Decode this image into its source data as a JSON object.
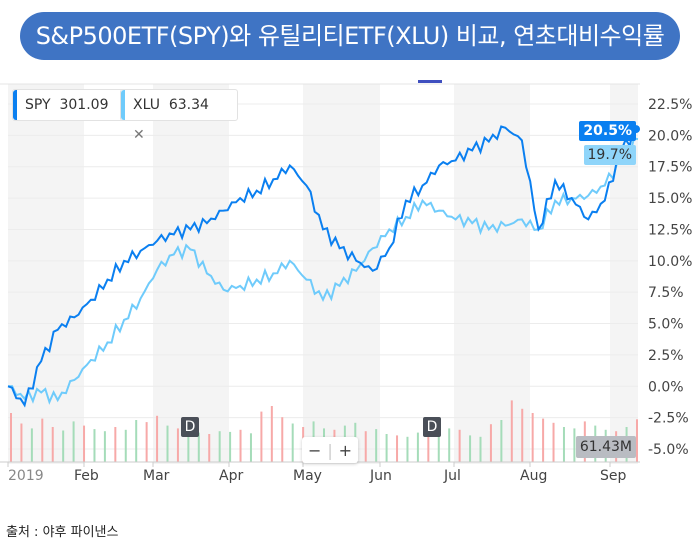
{
  "title": "S&P500ETF(SPY)와 유틸리티ETF(XLU) 비교, 연초대비수익률",
  "legend": {
    "spy": {
      "symbol": "SPY",
      "price": "301.09",
      "color": "#0a7ff0"
    },
    "xlu": {
      "symbol": "XLU",
      "price": "63.34",
      "color": "#6fcbfb",
      "close": "✕"
    }
  },
  "badges": {
    "spy": "20.5%",
    "xlu": "19.7%",
    "volume": "61.43M"
  },
  "dividend_markers": [
    "D",
    "D"
  ],
  "zoom": {
    "minus": "−",
    "plus": "+"
  },
  "source": "출처 : 야후 파이낸스",
  "chart_data": {
    "type": "line",
    "yticks": [
      "22.5%",
      "20.0%",
      "17.5%",
      "15.0%",
      "12.5%",
      "10.0%",
      "7.5%",
      "5.0%",
      "2.5%",
      "0.0%",
      "-2.5%",
      "-5.0%"
    ],
    "ylim": [
      -5,
      22.5
    ],
    "xticks": [
      "2019",
      "Feb",
      "Mar",
      "Apr",
      "May",
      "Jun",
      "Jul",
      "Aug",
      "Sep"
    ],
    "series": [
      {
        "name": "SPY",
        "color": "#0a7ff0",
        "values": [
          0,
          -1.5,
          2,
          4.5,
          5.5,
          6.9,
          8.5,
          10,
          10.8,
          11.6,
          12.1,
          12.5,
          13,
          14,
          15,
          15.6,
          16.5,
          17.6,
          16,
          12.5,
          11,
          10,
          9.2,
          11,
          14.8,
          16,
          17.6,
          18,
          18.8,
          19.5,
          20.6,
          19.6,
          12.5,
          16.4,
          15,
          13.3,
          14.8,
          18.8,
          20.5
        ]
      },
      {
        "name": "XLU",
        "color": "#6fcbfb",
        "values": [
          0,
          -1,
          -0.5,
          -1.1,
          0.5,
          2.1,
          3.5,
          5.3,
          7,
          9.3,
          10.5,
          10.9,
          9,
          7.7,
          8,
          8.5,
          9,
          10,
          8.5,
          6.9,
          8,
          9.2,
          11,
          12.5,
          13.5,
          14.8,
          14,
          13.3,
          13,
          12.5,
          12.8,
          13.3,
          12.5,
          14.8,
          15,
          15.2,
          16,
          18,
          19.7
        ]
      }
    ],
    "volume": {
      "unit": "M",
      "last": 61.43,
      "values": [
        70,
        55,
        48,
        62,
        50,
        45,
        58,
        52,
        47,
        44,
        50,
        46,
        60,
        57,
        66,
        52,
        48,
        45,
        42,
        40,
        44,
        43,
        46,
        41,
        72,
        80,
        64,
        55,
        50,
        58,
        48,
        46,
        52,
        56,
        44,
        47,
        40,
        38,
        36,
        42,
        60,
        52,
        48,
        46,
        38,
        36,
        54,
        60,
        88,
        76,
        70,
        62,
        56,
        50,
        48,
        58,
        52,
        46,
        44,
        50,
        61
      ]
    }
  }
}
